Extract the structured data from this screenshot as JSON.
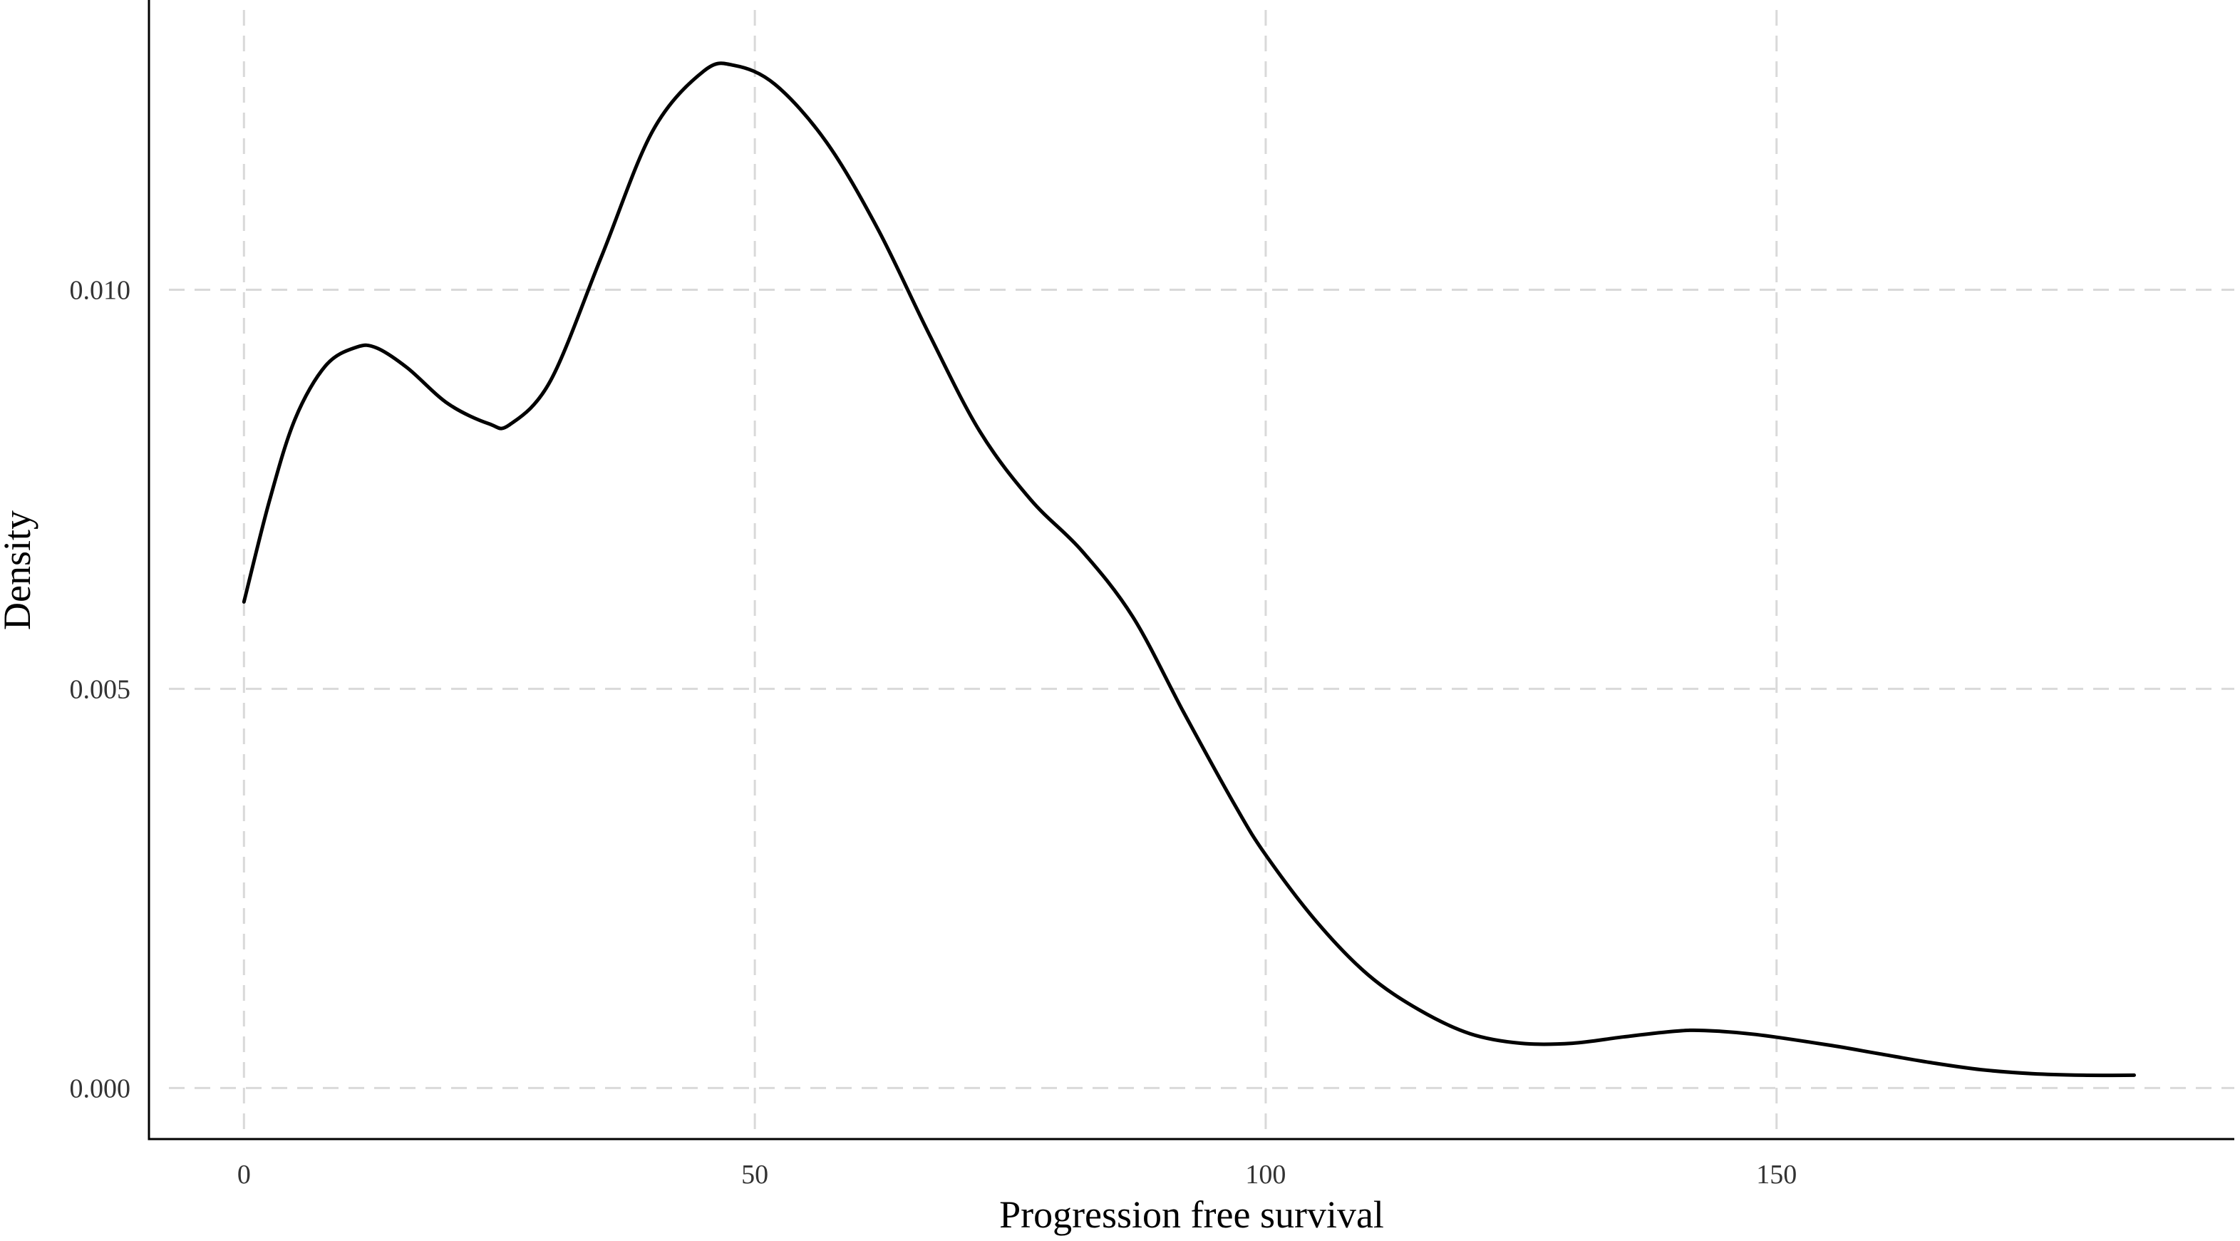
{
  "chart_data": {
    "type": "line",
    "title": "",
    "xlabel": "Progression free survival",
    "ylabel": "Density",
    "xlim": [
      -9.3,
      194.8
    ],
    "ylim": [
      -0.00064,
      0.01363
    ],
    "x_ticks": [
      0,
      50,
      100,
      150
    ],
    "x_tick_labels": [
      "0",
      "50",
      "100",
      "150"
    ],
    "y_ticks": [
      0.0,
      0.005,
      0.01
    ],
    "y_tick_labels": [
      "0.000",
      "0.005",
      "0.010"
    ],
    "grid": true,
    "grid_style": "dashed",
    "legend": "none",
    "line_color": "#000000",
    "series": [
      {
        "x": [
          0,
          2.5,
          5,
          8,
          11,
          13,
          16,
          20,
          24,
          26,
          30,
          35,
          40,
          45,
          48,
          52,
          57,
          62,
          67,
          72,
          77,
          82,
          87,
          92,
          97,
          100,
          105,
          110,
          115,
          120,
          125,
          130,
          135,
          140,
          143,
          148,
          155,
          160,
          165,
          170,
          175,
          180,
          185
        ],
        "y": [
          0.00609,
          0.00736,
          0.00838,
          0.00905,
          0.00928,
          0.00927,
          0.00902,
          0.00857,
          0.00832,
          0.00831,
          0.00886,
          0.01042,
          0.01199,
          0.01274,
          0.01281,
          0.01257,
          0.01185,
          0.01077,
          0.00946,
          0.00823,
          0.00737,
          0.00673,
          0.0059,
          0.0047,
          0.00354,
          0.00292,
          0.00208,
          0.00142,
          0.00098,
          0.00068,
          0.00056,
          0.00056,
          0.00064,
          0.00071,
          0.00072,
          0.00067,
          0.00054,
          0.00043,
          0.00032,
          0.00023,
          0.00018,
          0.00016,
          0.00016
        ]
      }
    ]
  }
}
